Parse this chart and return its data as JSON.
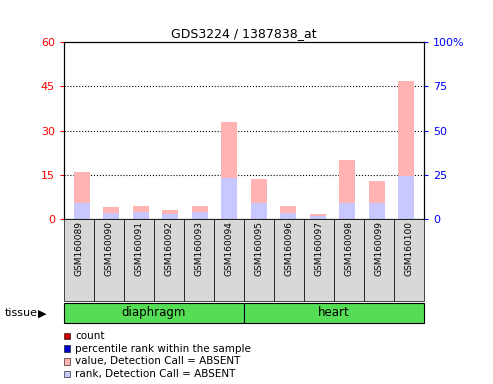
{
  "title": "GDS3224 / 1387838_at",
  "samples": [
    "GSM160089",
    "GSM160090",
    "GSM160091",
    "GSM160092",
    "GSM160093",
    "GSM160094",
    "GSM160095",
    "GSM160096",
    "GSM160097",
    "GSM160098",
    "GSM160099",
    "GSM160100"
  ],
  "tissue_groups": [
    {
      "label": "diaphragm",
      "start": 0,
      "end": 5
    },
    {
      "label": "heart",
      "start": 6,
      "end": 11
    }
  ],
  "value_absent": [
    16.0,
    4.0,
    4.5,
    3.0,
    4.5,
    33.0,
    13.5,
    4.5,
    1.5,
    20.0,
    13.0,
    47.0
  ],
  "rank_absent": [
    5.5,
    2.0,
    2.5,
    1.5,
    2.5,
    14.0,
    5.5,
    2.0,
    1.0,
    5.5,
    5.5,
    14.5
  ],
  "ylim_left": [
    0,
    60
  ],
  "ylim_right": [
    0,
    100
  ],
  "yticks_left": [
    0,
    15,
    30,
    45,
    60
  ],
  "yticks_right": [
    0,
    25,
    50,
    75,
    100
  ],
  "ytick_labels_left": [
    "0",
    "15",
    "30",
    "45",
    "60"
  ],
  "ytick_labels_right": [
    "0",
    "25",
    "50",
    "75",
    "100%"
  ],
  "color_value_absent": "#ffb3b3",
  "color_rank_absent": "#c8c8ff",
  "color_count": "#cc0000",
  "color_rank": "#0000cc",
  "bar_width": 0.55,
  "legend_items": [
    {
      "color": "#cc0000",
      "label": "count"
    },
    {
      "color": "#0000cc",
      "label": "percentile rank within the sample"
    },
    {
      "color": "#ffb3b3",
      "label": "value, Detection Call = ABSENT"
    },
    {
      "color": "#c8c8ff",
      "label": "rank, Detection Call = ABSENT"
    }
  ]
}
